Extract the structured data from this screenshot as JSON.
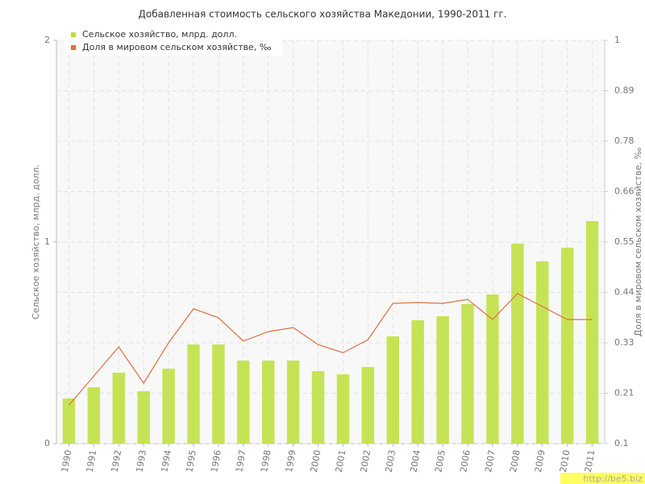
{
  "chart_data": {
    "type": "bar-line",
    "title": "Добавленная стоимость сельского хозяйства Македонии, 1990-2011 гг.",
    "y_label": "Сельское хозяйство, млрд. долл.",
    "y2_label": "Доля в мировом сельском хозяйстве, ‰",
    "categories": [
      "1990",
      "1991",
      "1992",
      "1993",
      "1994",
      "1995",
      "1996",
      "1997",
      "1998",
      "1999",
      "2000",
      "2001",
      "2002",
      "2003",
      "2004",
      "2005",
      "2006",
      "2007",
      "2008",
      "2009",
      "2010",
      "2011"
    ],
    "series": [
      {
        "name": "Сельское хозяйство, млрд. долл.",
        "color": "#bddf3a",
        "kind": "bar",
        "values": [
          0.224,
          0.28,
          0.352,
          0.26,
          0.372,
          0.492,
          0.492,
          0.412,
          0.412,
          0.412,
          0.36,
          0.344,
          0.38,
          0.532,
          0.612,
          0.632,
          0.692,
          0.74,
          0.992,
          0.904,
          0.972,
          1.104
        ]
      },
      {
        "name": "Доля в мировом сельском хозяйстве, ‰",
        "color": "#e07040",
        "kind": "line",
        "axis": "y2",
        "values": [
          0.186,
          0.251,
          0.316,
          0.235,
          0.325,
          0.401,
          0.381,
          0.329,
          0.35,
          0.359,
          0.321,
          0.303,
          0.332,
          0.413,
          0.415,
          0.413,
          0.422,
          0.377,
          0.435,
          0.406,
          0.377,
          0.377
        ]
      }
    ],
    "ylim": [
      0,
      2
    ],
    "yticks": [
      0,
      1,
      2
    ],
    "y2lim": [
      0.1,
      1
    ],
    "y2ticks": [
      0.1,
      {
        "value": 0.2125,
        "label": "0.21"
      },
      {
        "value": 0.325,
        "label": "0.33"
      },
      {
        "value": 0.4375,
        "label": "0.44"
      },
      0.55,
      {
        "value": 0.6625,
        "label": "0.66"
      },
      {
        "value": 0.775,
        "label": "0.78"
      },
      {
        "value": 0.8875,
        "label": "0.89"
      },
      1
    ],
    "grid": true,
    "legend": "top-left",
    "watermark": "http://be5.biz"
  }
}
